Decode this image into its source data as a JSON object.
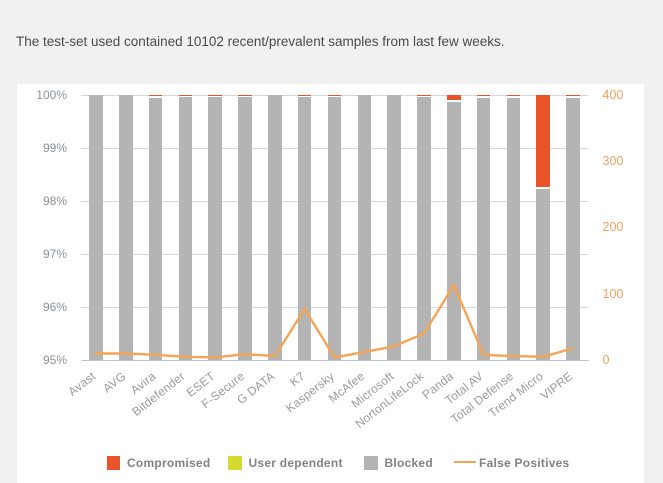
{
  "header": {
    "title": "The test-set used contained 10102 recent/prevalent samples from last few weeks."
  },
  "colors": {
    "page_background": "#f1f1f1",
    "card_background": "#ffffff",
    "compromised": "#e8532a",
    "user_dependent": "#d6d92f",
    "blocked": "#b4b4b4",
    "false_positives_line": "#f6a455",
    "left_axis_text": "#8c929c",
    "right_axis_text": "#f2a05f",
    "x_axis_text": "#9b9b9b",
    "gridline": "#d6d6d6",
    "baseline": "#b9c4d4"
  },
  "chart_data": {
    "type": "bar",
    "stacked": true,
    "categories": [
      "Avast",
      "AVG",
      "Avira",
      "Bitdefender",
      "ESET",
      "F-Secure",
      "G DATA",
      "K7",
      "Kaspersky",
      "McAfee",
      "Microsoft",
      "NortonLifeLock",
      "Panda",
      "Total AV",
      "Total Defense",
      "Trend Micro",
      "VIPRE"
    ],
    "series": [
      {
        "name": "Compromised",
        "type": "bar",
        "unit": "%",
        "values": [
          0,
          0,
          0.045,
          0.027,
          0.028,
          0.027,
          0,
          0.03,
          0.03,
          0,
          0,
          0.03,
          0.12,
          0.044,
          0.038,
          1.75,
          0.038
        ]
      },
      {
        "name": "User dependent",
        "type": "bar",
        "unit": "%",
        "values": [
          0,
          0,
          0,
          0,
          0,
          0,
          0,
          0,
          0,
          0,
          0,
          0,
          0,
          0,
          0,
          0,
          0
        ]
      },
      {
        "name": "Blocked",
        "type": "bar",
        "unit": "%",
        "values": [
          100,
          100,
          99.955,
          99.973,
          99.972,
          99.973,
          100,
          99.97,
          99.97,
          100,
          100,
          99.97,
          99.88,
          99.956,
          99.962,
          98.25,
          99.962
        ]
      },
      {
        "name": "False Positives",
        "type": "line",
        "axis": "right",
        "values": [
          10,
          10,
          8,
          5,
          4,
          9,
          6,
          77,
          4,
          12,
          21,
          40,
          113,
          8,
          6,
          5,
          18
        ]
      }
    ],
    "left_axis": {
      "min": 95,
      "max": 100,
      "tick_labels": [
        "100%",
        "99%",
        "98%",
        "97%",
        "96%",
        "95%"
      ]
    },
    "right_axis": {
      "min": 0,
      "max": 400,
      "tick_labels": [
        "400",
        "300",
        "200",
        "100",
        "0"
      ]
    },
    "legend": [
      {
        "label": "Compromised",
        "marker": "square",
        "color_key": "compromised"
      },
      {
        "label": "User dependent",
        "marker": "square",
        "color_key": "user_dependent"
      },
      {
        "label": "Blocked",
        "marker": "square",
        "color_key": "blocked"
      },
      {
        "label": "False Positives",
        "marker": "line",
        "color_key": "false_positives_line"
      }
    ]
  }
}
